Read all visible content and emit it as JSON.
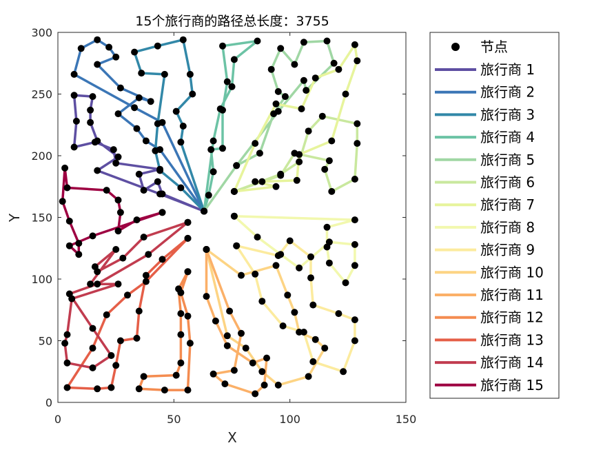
{
  "chart_data": {
    "type": "line",
    "title": "15个旅行商的路径总长度：3755",
    "xlabel": "X",
    "ylabel": "Y",
    "xlim": [
      0,
      150
    ],
    "ylim": [
      0,
      300
    ],
    "xticks": [
      0,
      50,
      100,
      150
    ],
    "yticks": [
      0,
      50,
      100,
      150,
      200,
      250,
      300
    ],
    "grid": false,
    "legend_position": "outside-right",
    "nodes_label": "节点",
    "depot": [
      63,
      155
    ],
    "series": [
      {
        "name": "旅行商 1",
        "color": "#5E4FA2",
        "points": [
          [
            63,
            155
          ],
          [
            45,
            169
          ],
          [
            43,
            179
          ],
          [
            37,
            172
          ],
          [
            35,
            185
          ],
          [
            44,
            189
          ],
          [
            25,
            194
          ],
          [
            24,
            205
          ],
          [
            16,
            211
          ],
          [
            7,
            207
          ],
          [
            8,
            228
          ],
          [
            7,
            249
          ],
          [
            15,
            248
          ],
          [
            14,
            237
          ],
          [
            14,
            227
          ],
          [
            17,
            212
          ],
          [
            26,
            199
          ],
          [
            17,
            188
          ],
          [
            44,
            169
          ],
          [
            63,
            155
          ]
        ]
      },
      {
        "name": "旅行商 2",
        "color": "#3B76B6",
        "points": [
          [
            63,
            155
          ],
          [
            44,
            205
          ],
          [
            38,
            212
          ],
          [
            34,
            222
          ],
          [
            26,
            234
          ],
          [
            35,
            247
          ],
          [
            40,
            244
          ],
          [
            27,
            255
          ],
          [
            17,
            274
          ],
          [
            25,
            280
          ],
          [
            22,
            288
          ],
          [
            17,
            294
          ],
          [
            10,
            287
          ],
          [
            7,
            266
          ],
          [
            33,
            239
          ],
          [
            45,
            227
          ],
          [
            63,
            155
          ]
        ]
      },
      {
        "name": "旅行商 3",
        "color": "#3288A8",
        "points": [
          [
            63,
            155
          ],
          [
            53,
            174
          ],
          [
            44,
            188
          ],
          [
            42,
            204
          ],
          [
            43,
            226
          ],
          [
            46,
            266
          ],
          [
            36,
            267
          ],
          [
            33,
            284
          ],
          [
            43,
            289
          ],
          [
            54,
            294
          ],
          [
            57,
            266
          ],
          [
            58,
            250
          ],
          [
            51,
            236
          ],
          [
            54,
            224
          ],
          [
            53,
            211
          ],
          [
            63,
            155
          ]
        ]
      },
      {
        "name": "旅行商 4",
        "color": "#6CC3A5",
        "points": [
          [
            63,
            155
          ],
          [
            65,
            168
          ],
          [
            67,
            187
          ],
          [
            66,
            205
          ],
          [
            71,
            206
          ],
          [
            71,
            237
          ],
          [
            73,
            260
          ],
          [
            71,
            289
          ],
          [
            86,
            293
          ],
          [
            76,
            278
          ],
          [
            75,
            256
          ],
          [
            70,
            238
          ],
          [
            67,
            212
          ],
          [
            63,
            155
          ]
        ]
      },
      {
        "name": "旅行商 5",
        "color": "#A0D7A4",
        "points": [
          [
            63,
            155
          ],
          [
            77,
            192
          ],
          [
            87,
            202
          ],
          [
            93,
            234
          ],
          [
            98,
            248
          ],
          [
            95,
            252
          ],
          [
            92,
            270
          ],
          [
            96,
            287
          ],
          [
            102,
            274
          ],
          [
            106,
            292
          ],
          [
            116,
            293
          ],
          [
            119,
            275
          ],
          [
            107,
            253
          ],
          [
            106,
            261
          ],
          [
            95,
            236
          ],
          [
            77,
            192
          ]
        ]
      },
      {
        "name": "旅行商 6",
        "color": "#C9E89E",
        "points": [
          [
            76,
            171
          ],
          [
            96,
            185
          ],
          [
            104,
            195
          ],
          [
            108,
            220
          ],
          [
            114,
            232
          ],
          [
            129,
            226
          ],
          [
            129,
            210
          ],
          [
            128,
            181
          ],
          [
            118,
            171
          ],
          [
            115,
            189
          ],
          [
            117,
            196
          ],
          [
            102,
            202
          ],
          [
            96,
            184
          ],
          [
            76,
            171
          ]
        ]
      },
      {
        "name": "旅行商 7",
        "color": "#E7F49C",
        "points": [
          [
            76,
            171
          ],
          [
            94,
            175
          ],
          [
            85,
            179
          ],
          [
            88,
            179
          ],
          [
            103,
            180
          ],
          [
            104,
            201
          ],
          [
            118,
            212
          ],
          [
            124,
            250
          ],
          [
            129,
            277
          ],
          [
            128,
            290
          ],
          [
            121,
            270
          ],
          [
            111,
            263
          ],
          [
            105,
            238
          ],
          [
            94,
            242
          ],
          [
            85,
            210
          ],
          [
            76,
            171
          ]
        ]
      },
      {
        "name": "旅行商 8",
        "color": "#F2F8AE",
        "points": [
          [
            76,
            151
          ],
          [
            128,
            148
          ],
          [
            116,
            142
          ],
          [
            116,
            126
          ],
          [
            117,
            113
          ],
          [
            124,
            97
          ],
          [
            128,
            111
          ],
          [
            128,
            128
          ],
          [
            117,
            130
          ],
          [
            104,
            109
          ],
          [
            96,
            120
          ],
          [
            86,
            134
          ],
          [
            76,
            151
          ]
        ]
      },
      {
        "name": "旅行商 9",
        "color": "#FCEB9E",
        "points": [
          [
            77,
            127
          ],
          [
            95,
            119
          ],
          [
            100,
            131
          ],
          [
            109,
            118
          ],
          [
            109,
            101
          ],
          [
            110,
            79
          ],
          [
            121,
            72
          ],
          [
            128,
            67
          ],
          [
            128,
            50
          ],
          [
            123,
            25
          ],
          [
            110,
            33
          ],
          [
            106,
            57
          ],
          [
            97,
            62
          ],
          [
            88,
            82
          ],
          [
            85,
            104
          ],
          [
            77,
            127
          ]
        ]
      },
      {
        "name": "旅行商 10",
        "color": "#FDD484",
        "points": [
          [
            64,
            124
          ],
          [
            79,
            103
          ],
          [
            94,
            111
          ],
          [
            99,
            87
          ],
          [
            102,
            73
          ],
          [
            104,
            57
          ],
          [
            111,
            51
          ],
          [
            115,
            44
          ],
          [
            108,
            21
          ],
          [
            95,
            14
          ],
          [
            88,
            25
          ],
          [
            81,
            44
          ],
          [
            73,
            54
          ],
          [
            64,
            124
          ]
        ]
      },
      {
        "name": "旅行商 11",
        "color": "#FBB068",
        "points": [
          [
            64,
            124
          ],
          [
            74,
            74
          ],
          [
            79,
            56
          ],
          [
            76,
            26
          ],
          [
            67,
            23
          ],
          [
            72,
            15
          ],
          [
            85,
            7
          ],
          [
            89,
            14
          ],
          [
            90,
            36
          ],
          [
            84,
            32
          ],
          [
            73,
            46
          ],
          [
            68,
            66
          ],
          [
            64,
            86
          ],
          [
            64,
            124
          ]
        ]
      },
      {
        "name": "旅行商 12",
        "color": "#F48C50",
        "points": [
          [
            56,
            106
          ],
          [
            52,
            92
          ],
          [
            53,
            72
          ],
          [
            53,
            55
          ],
          [
            53,
            32
          ],
          [
            51,
            22
          ],
          [
            37,
            21
          ],
          [
            35,
            11
          ],
          [
            46,
            10
          ],
          [
            56,
            10
          ],
          [
            57,
            48
          ],
          [
            56,
            70
          ],
          [
            53,
            89
          ],
          [
            56,
            106
          ]
        ]
      },
      {
        "name": "旅行商 13",
        "color": "#E55F48",
        "points": [
          [
            56,
            133
          ],
          [
            45,
            116
          ],
          [
            38,
            103
          ],
          [
            35,
            74
          ],
          [
            34,
            52
          ],
          [
            27,
            50
          ],
          [
            25,
            30
          ],
          [
            23,
            12
          ],
          [
            17,
            11
          ],
          [
            4,
            12
          ],
          [
            15,
            44
          ],
          [
            21,
            71
          ],
          [
            30,
            87
          ],
          [
            38,
            98
          ],
          [
            56,
            133
          ]
        ]
      },
      {
        "name": "旅行商 14",
        "color": "#C13C4F",
        "points": [
          [
            56,
            146
          ],
          [
            37,
            134
          ],
          [
            28,
            117
          ],
          [
            17,
            106
          ],
          [
            16,
            110
          ],
          [
            25,
            124
          ],
          [
            14,
            96
          ],
          [
            26,
            96
          ],
          [
            6,
            84
          ],
          [
            4,
            55
          ],
          [
            3,
            48
          ],
          [
            4,
            32
          ],
          [
            15,
            28
          ],
          [
            23,
            38
          ],
          [
            15,
            60
          ],
          [
            5,
            88
          ],
          [
            17,
            96
          ],
          [
            39,
            120
          ],
          [
            56,
            146
          ]
        ]
      },
      {
        "name": "旅行商 15",
        "color": "#9E0142",
        "points": [
          [
            45,
            154
          ],
          [
            34,
            148
          ],
          [
            26,
            139
          ],
          [
            27,
            154
          ],
          [
            26,
            164
          ],
          [
            21,
            172
          ],
          [
            4,
            174
          ],
          [
            3,
            190
          ],
          [
            2,
            163
          ],
          [
            5,
            147
          ],
          [
            9,
            129
          ],
          [
            9,
            120
          ],
          [
            5,
            127
          ],
          [
            15,
            135
          ],
          [
            45,
            154
          ]
        ]
      }
    ]
  }
}
